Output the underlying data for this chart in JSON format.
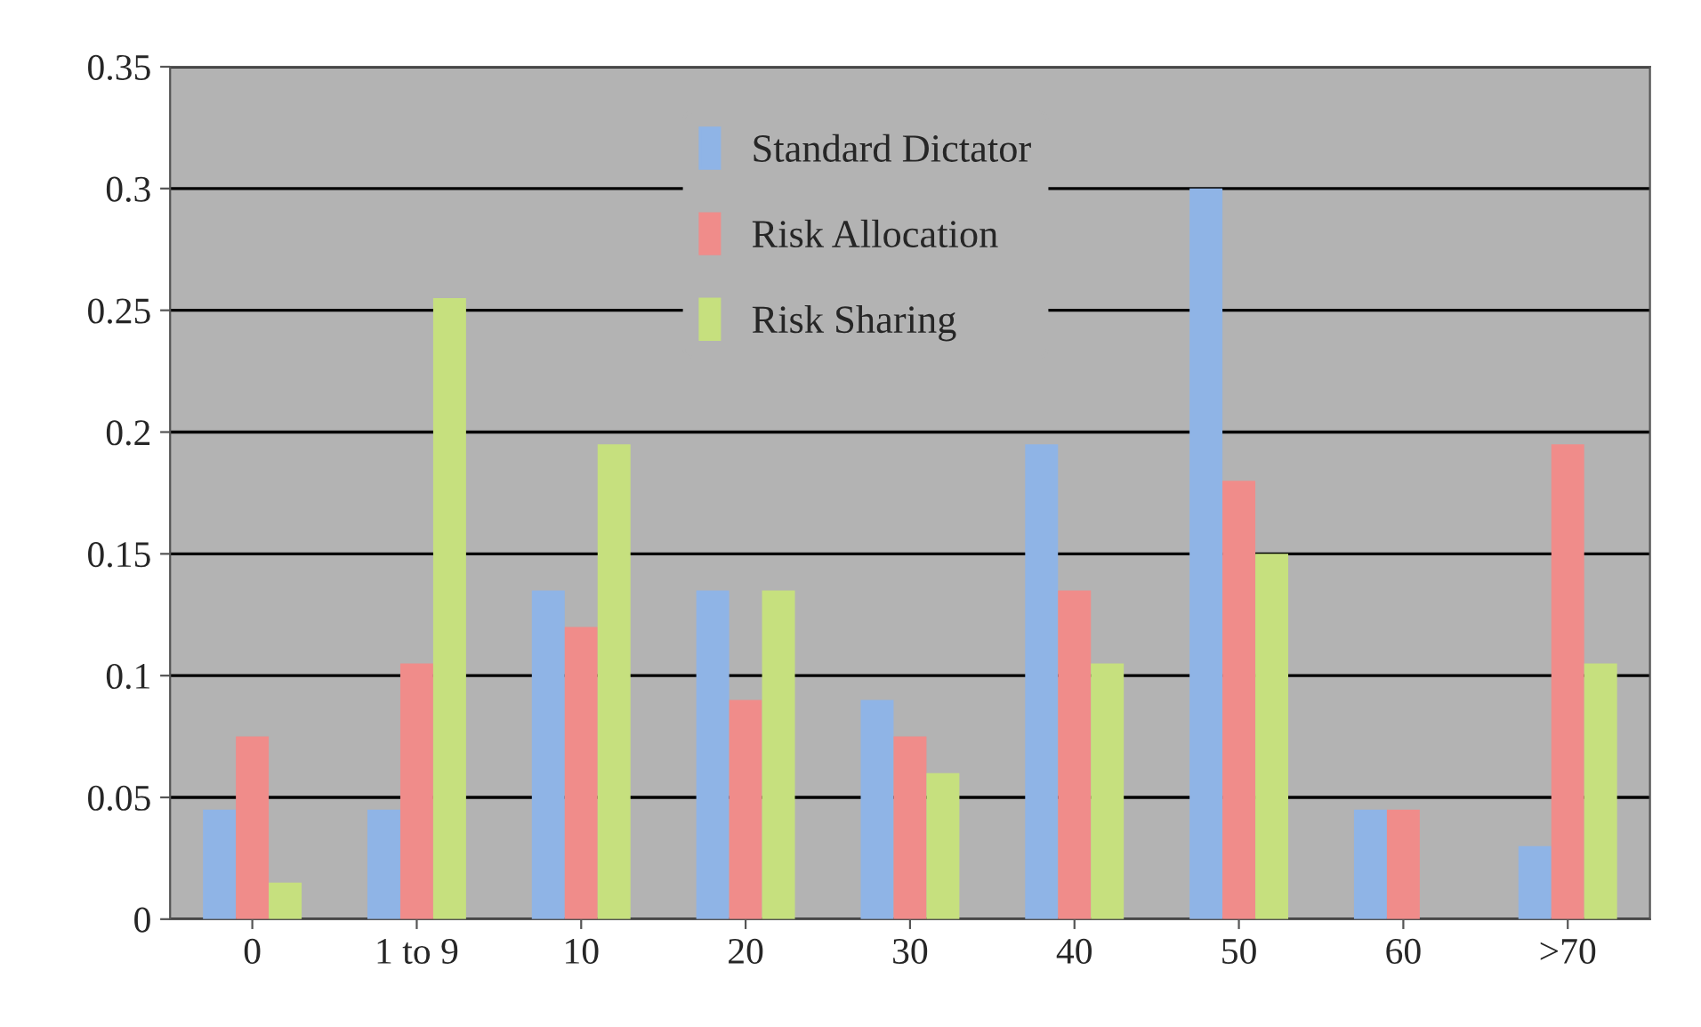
{
  "chart_data": {
    "type": "bar",
    "categories": [
      "0",
      "1 to 9",
      "10",
      "20",
      "30",
      "40",
      "50",
      "60",
      ">70"
    ],
    "series": [
      {
        "name": "Standard Dictator",
        "color": "#8fb4e6",
        "values": [
          0.045,
          0.045,
          0.135,
          0.135,
          0.09,
          0.195,
          0.3,
          0.045,
          0.03
        ]
      },
      {
        "name": "Risk Allocation",
        "color": "#f08c8a",
        "values": [
          0.075,
          0.105,
          0.12,
          0.09,
          0.075,
          0.135,
          0.18,
          0.045,
          0.195
        ]
      },
      {
        "name": "Risk Sharing",
        "color": "#c6e07e",
        "values": [
          0.015,
          0.255,
          0.195,
          0.135,
          0.06,
          0.105,
          0.15,
          null,
          0.105
        ]
      }
    ],
    "ylim": [
      0,
      0.35
    ],
    "yticks": [
      0,
      0.05,
      0.1,
      0.15,
      0.2,
      0.25,
      0.3,
      0.35
    ],
    "grid": "y",
    "legend": "top"
  }
}
